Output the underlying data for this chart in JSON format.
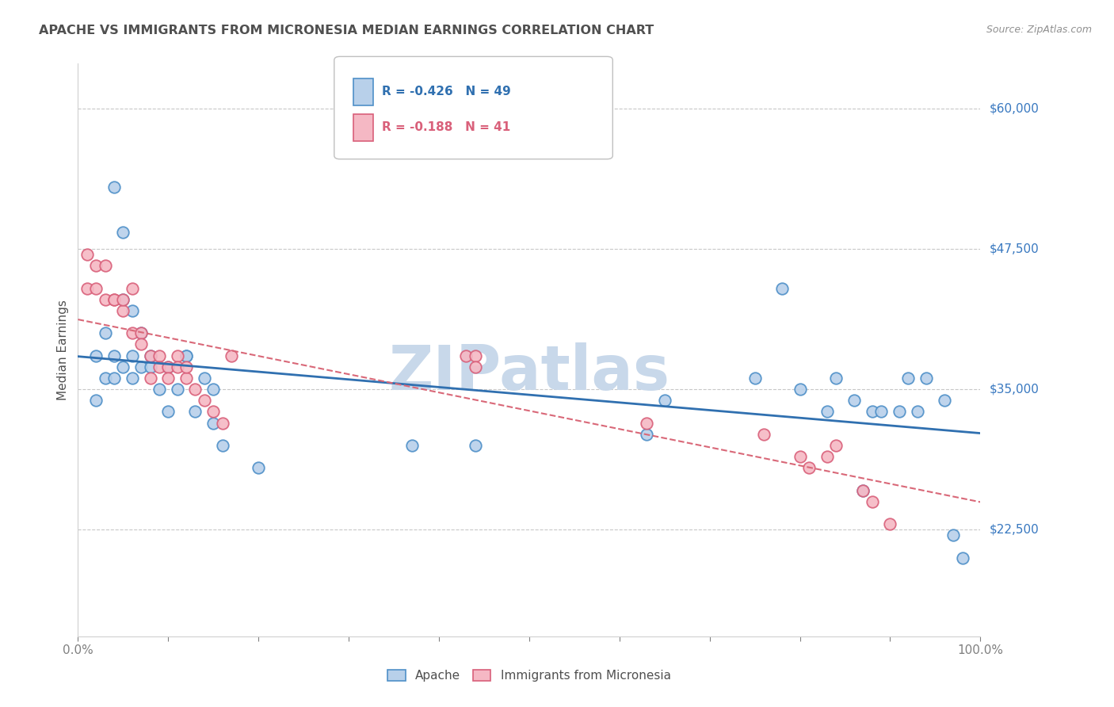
{
  "title": "APACHE VS IMMIGRANTS FROM MICRONESIA MEDIAN EARNINGS CORRELATION CHART",
  "source": "Source: ZipAtlas.com",
  "ylabel": "Median Earnings",
  "xlim": [
    0.0,
    1.0
  ],
  "ylim": [
    13000,
    64000
  ],
  "yticks": [
    22500,
    35000,
    47500,
    60000
  ],
  "ytick_labels": [
    "$22,500",
    "$35,000",
    "$47,500",
    "$60,000"
  ],
  "xticks": [
    0.0,
    0.1,
    0.2,
    0.3,
    0.4,
    0.5,
    0.6,
    0.7,
    0.8,
    0.9,
    1.0
  ],
  "xtick_labels": [
    "0.0%",
    "",
    "",
    "",
    "",
    "",
    "",
    "",
    "",
    "",
    "100.0%"
  ],
  "apache_color": "#b8d0ea",
  "apache_edge_color": "#4f90c8",
  "micronesia_color": "#f5b8c4",
  "micronesia_edge_color": "#d9607a",
  "apache_R": -0.426,
  "apache_N": 49,
  "micronesia_R": -0.188,
  "micronesia_N": 41,
  "apache_line_color": "#3070b0",
  "micronesia_line_color": "#d96878",
  "watermark": "ZIPatlas",
  "watermark_color": "#c8d8ea",
  "title_color": "#505050",
  "axis_label_color": "#505050",
  "right_label_color": "#3878c0",
  "grid_color": "#c8c8c8",
  "apache_x": [
    0.02,
    0.03,
    0.04,
    0.05,
    0.05,
    0.06,
    0.02,
    0.03,
    0.04,
    0.04,
    0.05,
    0.06,
    0.07,
    0.06,
    0.07,
    0.08,
    0.08,
    0.09,
    0.1,
    0.1,
    0.11,
    0.12,
    0.12,
    0.13,
    0.14,
    0.15,
    0.15,
    0.16,
    0.2,
    0.37,
    0.44,
    0.63,
    0.65,
    0.75,
    0.78,
    0.8,
    0.83,
    0.84,
    0.86,
    0.87,
    0.88,
    0.89,
    0.91,
    0.92,
    0.93,
    0.94,
    0.96,
    0.97,
    0.98
  ],
  "apache_y": [
    38000,
    36000,
    53000,
    49000,
    43000,
    42000,
    34000,
    40000,
    38000,
    36000,
    37000,
    38000,
    40000,
    36000,
    37000,
    37000,
    38000,
    35000,
    33000,
    37000,
    35000,
    38000,
    38000,
    33000,
    36000,
    35000,
    32000,
    30000,
    28000,
    30000,
    30000,
    31000,
    34000,
    36000,
    44000,
    35000,
    33000,
    36000,
    34000,
    26000,
    33000,
    33000,
    33000,
    36000,
    33000,
    36000,
    34000,
    22000,
    20000
  ],
  "micronesia_x": [
    0.01,
    0.01,
    0.02,
    0.02,
    0.03,
    0.03,
    0.04,
    0.04,
    0.05,
    0.05,
    0.06,
    0.06,
    0.07,
    0.07,
    0.08,
    0.08,
    0.09,
    0.09,
    0.1,
    0.1,
    0.11,
    0.11,
    0.12,
    0.12,
    0.13,
    0.14,
    0.15,
    0.16,
    0.17,
    0.43,
    0.44,
    0.44,
    0.63,
    0.76,
    0.8,
    0.81,
    0.83,
    0.84,
    0.87,
    0.88,
    0.9
  ],
  "micronesia_y": [
    44000,
    47000,
    44000,
    46000,
    43000,
    46000,
    43000,
    43000,
    42000,
    43000,
    44000,
    40000,
    40000,
    39000,
    38000,
    36000,
    38000,
    37000,
    37000,
    36000,
    38000,
    37000,
    36000,
    37000,
    35000,
    34000,
    33000,
    32000,
    38000,
    38000,
    38000,
    37000,
    32000,
    31000,
    29000,
    28000,
    29000,
    30000,
    26000,
    25000,
    23000
  ]
}
